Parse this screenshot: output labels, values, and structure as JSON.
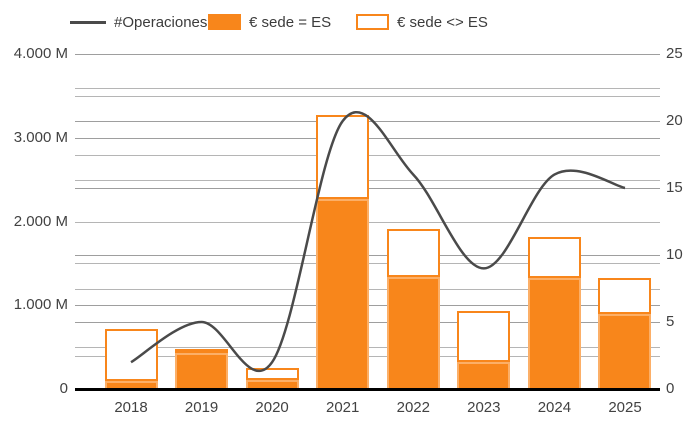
{
  "legend": {
    "operaciones_label": "#Operaciones",
    "sede_es_label": "€ sede = ES",
    "sede_no_es_label": "€ sede <> ES"
  },
  "colors": {
    "bar_fill": "#F8861B",
    "bar_fill_border": "#FCAF67",
    "bar_outline": "#F8861B",
    "line": "#4A4A4A",
    "grid_major": "#9E9E9E",
    "grid_minor": "#B5B5B5",
    "axis_text": "#424242",
    "baseline": "#000000"
  },
  "chart_data": {
    "type": "combo (stacked bar + line)",
    "categories": [
      "2018",
      "2019",
      "2020",
      "2021",
      "2022",
      "2023",
      "2024",
      "2025"
    ],
    "series": [
      {
        "name": "#Operaciones",
        "type": "line",
        "axis": "right",
        "values": [
          2,
          5,
          2,
          20,
          16,
          9,
          16,
          15
        ]
      },
      {
        "name": "€ sede = ES",
        "type": "bar",
        "stack": "euros",
        "axis": "left",
        "unit": "M€",
        "values": [
          100,
          430,
          110,
          2270,
          1340,
          320,
          1320,
          900
        ]
      },
      {
        "name": "€ sede <> ES",
        "type": "bar",
        "stack": "euros",
        "axis": "left",
        "unit": "M€",
        "values": [
          620,
          50,
          140,
          1000,
          575,
          610,
          490,
          420
        ]
      }
    ],
    "left_axis": {
      "min": 0,
      "max": 4000,
      "major_step": 1000,
      "minor_step": 500,
      "tick_labels": [
        "0",
        "1.000 M",
        "2.000 M",
        "3.000 M",
        "4.000 M"
      ]
    },
    "right_axis": {
      "min": 0,
      "max": 25,
      "major_step": 5,
      "minor_step": 2.5,
      "tick_labels": [
        "0",
        "5",
        "10",
        "15",
        "20",
        "25"
      ]
    },
    "x_axis": {
      "tick_labels": [
        "2018",
        "2019",
        "2020",
        "2021",
        "2022",
        "2023",
        "2024",
        "2025"
      ]
    },
    "grid": "major and minor horizontal gridlines for both axes",
    "legend_position": "top",
    "line_smoothing": true
  }
}
